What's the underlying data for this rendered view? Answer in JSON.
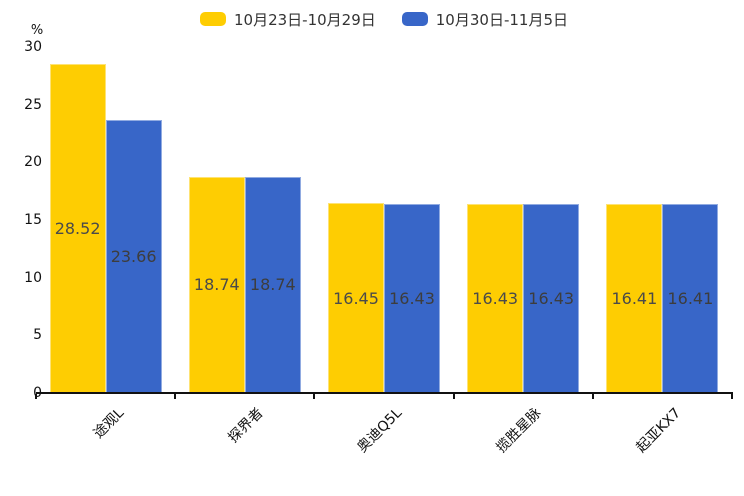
{
  "legend": {
    "items": [
      {
        "label": "10月23日-10月29日",
        "color": "#fecd02"
      },
      {
        "label": "10月30日-11月5日",
        "color": "#3866c8"
      }
    ]
  },
  "chart_data": {
    "type": "bar",
    "title": "",
    "unit_label": "%",
    "categories": [
      "途观L",
      "探界者",
      "奥迪Q5L",
      "揽胜星脉",
      "起亚KX7"
    ],
    "series": [
      {
        "name": "10月23日-10月29日",
        "color": "#fecd02",
        "label_color": "#4a4a4a",
        "values": [
          28.52,
          18.74,
          16.45,
          16.43,
          16.41
        ]
      },
      {
        "name": "10月30日-11月5日",
        "color": "#3866c8",
        "label_color": "#3d3d3d",
        "values": [
          23.66,
          18.74,
          16.43,
          16.43,
          16.41
        ]
      }
    ],
    "ylim": [
      0,
      30
    ],
    "yticks": [
      0,
      5,
      10,
      15,
      20,
      25,
      30
    ],
    "grid": false,
    "legend_position": "top",
    "bar_labels": true,
    "x_tick_rotation": 45
  }
}
